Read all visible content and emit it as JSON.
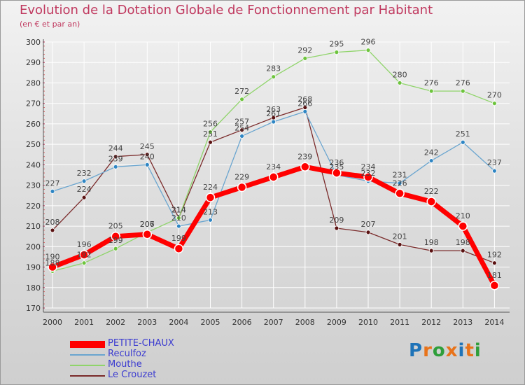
{
  "title": "Evolution de la Dotation Globale de Fonctionnement par Habitant",
  "subtitle": "(en € et par an)",
  "brand": {
    "name": "Proxiti",
    "letters": [
      "P",
      "r",
      "o",
      "x",
      "i",
      "t",
      "i"
    ],
    "colors": [
      "#1e73b8",
      "#e8731a",
      "#2e9e3a",
      "#e8731a",
      "#1e73b8",
      "#e8731a",
      "#2e9e3a"
    ]
  },
  "chart_data": {
    "type": "line",
    "title": "Evolution de la Dotation Globale de Fonctionnement par Habitant",
    "subtitle": "(en € et par an)",
    "xlabel": "",
    "ylabel": "",
    "ylim": [
      170,
      300
    ],
    "yticks": [
      170,
      180,
      190,
      200,
      210,
      220,
      230,
      240,
      250,
      260,
      270,
      280,
      290,
      300
    ],
    "grid": true,
    "legend": "bottom-left",
    "categories": [
      "2000",
      "2001",
      "2002",
      "2003",
      "2004",
      "2005",
      "2006",
      "2007",
      "2008",
      "2009",
      "2010",
      "2011",
      "2012",
      "2013",
      "2014"
    ],
    "series": [
      {
        "name": "Le Crouzet",
        "color": "#7a2a2a",
        "marker": "#5a1212",
        "width": 1.3,
        "markerR": 3,
        "values": [
          208,
          224,
          244,
          245,
          214,
          251,
          257,
          263,
          268,
          209,
          207,
          201,
          198,
          198,
          192
        ]
      },
      {
        "name": "Mouthe",
        "color": "#8fd46a",
        "marker": "#6ec43e",
        "width": 1.3,
        "markerR": 3,
        "values": [
          188,
          192,
          199,
          207,
          214,
          256,
          272,
          283,
          292,
          295,
          296,
          280,
          276,
          276,
          270
        ]
      },
      {
        "name": "Reculfoz",
        "color": "#6aa5cf",
        "marker": "#2f86c4",
        "width": 1.3,
        "markerR": 3,
        "values": [
          227,
          232,
          239,
          240,
          210,
          213,
          254,
          261,
          266,
          235,
          232,
          231,
          242,
          251,
          237
        ]
      },
      {
        "name": "PETITE-CHAUX",
        "color": "#ff0000",
        "marker": "#ff0000",
        "width": 7,
        "markerR": 6,
        "values": [
          190,
          196,
          205,
          206,
          199,
          224,
          229,
          234,
          239,
          236,
          234,
          226,
          222,
          210,
          181
        ]
      }
    ],
    "data_labels": {
      "Le Crouzet": [
        "208",
        "224",
        "244",
        "245",
        "214",
        "251",
        "257",
        "263",
        "268",
        "209",
        "207",
        "201",
        "198",
        "198",
        "192"
      ],
      "Mouthe": [
        "188",
        "192",
        "199",
        "207",
        "214",
        "256",
        "272",
        "283",
        "292",
        "295",
        "296",
        "280",
        "276",
        "276",
        "270"
      ],
      "Reculfoz": [
        "227",
        "232",
        "239",
        "240",
        "210",
        "213",
        "254",
        "261",
        "266",
        "235",
        "232",
        "231",
        "242",
        "251",
        "237"
      ],
      "PETITE-CHAUX": [
        "190",
        "196",
        "205",
        "206",
        "199",
        "224",
        "229",
        "234",
        "239",
        "236",
        "234",
        "226",
        "222",
        "210",
        "181"
      ]
    },
    "legend_order": [
      "PETITE-CHAUX",
      "Reculfoz",
      "Mouthe",
      "Le Crouzet"
    ]
  }
}
